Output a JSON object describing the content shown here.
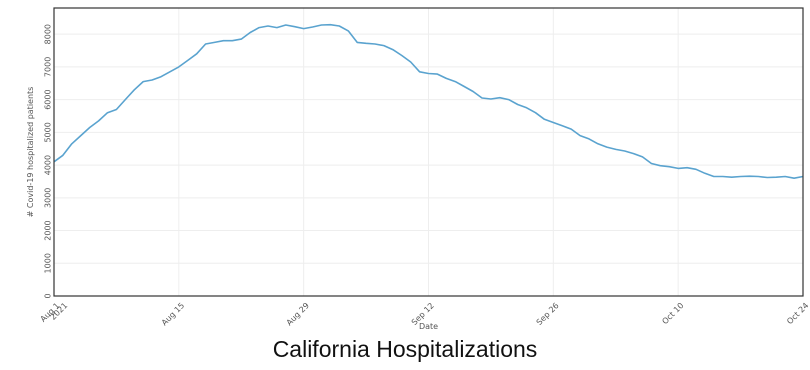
{
  "caption": "California Hospitalizations",
  "colors": {
    "line": "#5aa3cf",
    "grid": "#eeeeee",
    "frame": "#333333",
    "text": "#555555"
  },
  "chart_data": {
    "type": "line",
    "xlabel": "Date",
    "ylabel": "# Covid-19 hospitalized patients",
    "xlim": [
      0,
      84
    ],
    "ylim": [
      0,
      8800
    ],
    "grid": true,
    "x_ticks": [
      {
        "x": 0,
        "label": "Aug 1",
        "label2": "2021"
      },
      {
        "x": 14,
        "label": "Aug 15"
      },
      {
        "x": 28,
        "label": "Aug 29"
      },
      {
        "x": 42,
        "label": "Sep 12"
      },
      {
        "x": 56,
        "label": "Sep 26"
      },
      {
        "x": 70,
        "label": "Oct 10"
      },
      {
        "x": 84,
        "label": "Oct 24"
      }
    ],
    "y_ticks": [
      0,
      1000,
      2000,
      3000,
      4000,
      5000,
      6000,
      7000,
      8000
    ],
    "series": [
      {
        "x": [
          0,
          1,
          2,
          3,
          4,
          5,
          6,
          7,
          8,
          9,
          10,
          11,
          12,
          13,
          14,
          15,
          16,
          17,
          18,
          19,
          20,
          21,
          22,
          23,
          24,
          25,
          26,
          27,
          28,
          29,
          30,
          31,
          32,
          33,
          34,
          35,
          36,
          37,
          38,
          39,
          40,
          41,
          42,
          43,
          44,
          45,
          46,
          47,
          48,
          49,
          50,
          51,
          52,
          53,
          54,
          55,
          56,
          57,
          58,
          59,
          60,
          61,
          62,
          63,
          64,
          65,
          66,
          67,
          68,
          69,
          70,
          71,
          72,
          73,
          74,
          75,
          76,
          77,
          78,
          79,
          80,
          81,
          82,
          83,
          84
        ],
        "y": [
          4100,
          4300,
          4650,
          4900,
          5150,
          5350,
          5600,
          5700,
          6000,
          6300,
          6550,
          6600,
          6700,
          6850,
          7000,
          7200,
          7400,
          7700,
          7750,
          7800,
          7800,
          7850,
          8050,
          8200,
          8250,
          8200,
          8280,
          8230,
          8170,
          8220,
          8280,
          8290,
          8250,
          8100,
          7750,
          7720,
          7700,
          7650,
          7530,
          7350,
          7150,
          6850,
          6800,
          6780,
          6650,
          6550,
          6400,
          6250,
          6050,
          6020,
          6060,
          6000,
          5850,
          5750,
          5600,
          5400,
          5300,
          5200,
          5100,
          4900,
          4800,
          4650,
          4550,
          4480,
          4430,
          4350,
          4250,
          4050,
          3980,
          3950,
          3900,
          3920,
          3870,
          3750,
          3650,
          3650,
          3630,
          3650,
          3660,
          3650,
          3620,
          3630,
          3650,
          3600,
          3650
        ]
      }
    ]
  }
}
